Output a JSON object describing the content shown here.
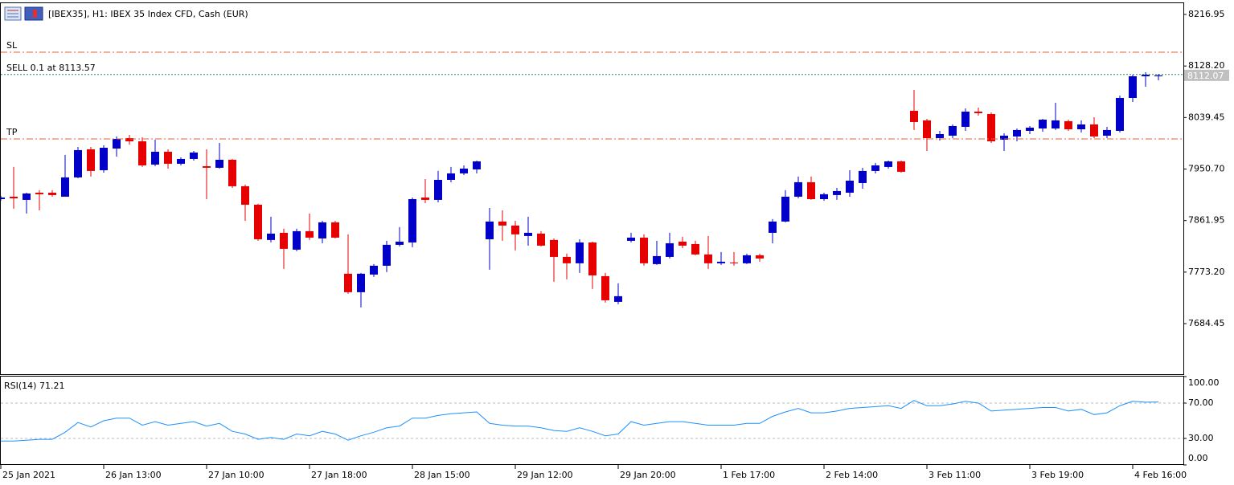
{
  "chart_data": [
    {
      "type": "candlestick",
      "title": "[IBEX35], H1:  IBEX 35 Index CFD, Cash (EUR)",
      "categories": [
        "25 Jan 2021",
        null,
        null,
        null,
        null,
        null,
        null,
        null,
        "26 Jan 13:00",
        null,
        null,
        null,
        null,
        null,
        null,
        null,
        "27 Jan 10:00",
        null,
        null,
        null,
        null,
        null,
        null,
        null,
        "27 Jan 18:00",
        null,
        null,
        null,
        null,
        null,
        null,
        null,
        "28 Jan 15:00",
        null,
        null,
        null,
        null,
        null,
        null,
        null,
        "29 Jan 12:00",
        null,
        null,
        null,
        null,
        null,
        null,
        null,
        "29 Jan 20:00",
        null,
        null,
        null,
        null,
        null,
        null,
        null,
        "1 Feb 17:00",
        null,
        null,
        null,
        null,
        null,
        null,
        null,
        "2 Feb 14:00",
        null,
        null,
        null,
        null,
        null,
        null,
        null,
        "3 Feb 11:00",
        null,
        null,
        null,
        null,
        null,
        null,
        null,
        "3 Feb 19:00",
        null,
        null,
        null,
        null,
        null,
        null,
        null,
        "4 Feb 16:00",
        null,
        null
      ],
      "open": [
        7898.9,
        7903.1,
        7897.6,
        7910.0,
        7910.0,
        7903.1,
        7936.3,
        7984.7,
        7948.7,
        7986.0,
        8004.0,
        7998.5,
        7958.4,
        7980.5,
        7959.8,
        7968.1,
        7955.6,
        7952.9,
        7966.7,
        7921.1,
        7889.3,
        7828.5,
        7840.9,
        7811.9,
        7843.7,
        7831.2,
        7858.9,
        7770.4,
        7738.6,
        7769.0,
        7784.2,
        7820.2,
        7824.3,
        7901.7,
        7897.6,
        7932.1,
        7943.2,
        7950.1,
        7829.8,
        7860.3,
        7853.4,
        7835.4,
        7839.5,
        7828.5,
        7799.4,
        7788.4,
        7824.3,
        7766.2,
        7722.0,
        7827.1,
        7832.6,
        7787.0,
        7799.4,
        7825.7,
        7821.5,
        7803.6,
        7788.4,
        7789.7,
        7788.4,
        7802.2,
        7840.9,
        7860.3,
        7903.1,
        7928.0,
        7898.9,
        7905.9,
        7910.0,
        7926.6,
        7947.4,
        7954.3,
        7963.9,
        8051.0,
        8034.5,
        8004.0,
        8008.2,
        8023.4,
        8049.6,
        8045.5,
        8001.2,
        8006.8,
        8016.5,
        8020.6,
        8020.6,
        8033.1,
        8019.2,
        8027.5,
        8008.2,
        8016.5,
        8073.1,
        8110.5,
        8110.5
      ],
      "high": [
        7904.5,
        7954.3,
        7910.0,
        7914.2,
        7914.2,
        7975.0,
        7988.8,
        7988.8,
        7991.6,
        8006.8,
        8009.5,
        8005.4,
        8001.2,
        7984.7,
        7970.8,
        7981.9,
        7984.7,
        7995.7,
        7968.1,
        7923.9,
        7890.7,
        7868.6,
        7847.8,
        7847.8,
        7874.1,
        7861.6,
        7861.6,
        7838.2,
        7771.8,
        7787.0,
        7827.1,
        7850.6,
        7901.7,
        7933.5,
        7947.4,
        7954.3,
        7957.0,
        7965.3,
        7883.7,
        7879.6,
        7861.6,
        7868.6,
        7843.7,
        7831.2,
        7805.0,
        7829.8,
        7825.7,
        7771.8,
        7753.9,
        7840.9,
        7838.2,
        7827.1,
        7840.9,
        7834.0,
        7827.1,
        7835.4,
        7807.7,
        7807.7,
        7805.0,
        7805.0,
        7864.4,
        7914.2,
        7937.7,
        7937.7,
        7910.0,
        7918.3,
        7948.7,
        7952.9,
        7961.2,
        7965.3,
        7965.3,
        8087.0,
        8037.2,
        8016.5,
        8027.5,
        8055.2,
        8056.5,
        8048.3,
        8012.3,
        8020.6,
        8024.8,
        8037.2,
        8064.8,
        8035.8,
        8034.5,
        8040.0,
        8023.4,
        8077.3,
        8113.2,
        8117.4,
        8114.6
      ],
      "low": [
        7896.2,
        7882.4,
        7874.1,
        7879.6,
        7903.1,
        7903.1,
        7934.9,
        7937.7,
        7944.6,
        7972.2,
        7993.0,
        7954.3,
        7955.6,
        7951.5,
        7957.0,
        7965.3,
        7898.9,
        7951.5,
        7918.3,
        7861.6,
        7827.1,
        7824.3,
        7778.7,
        7809.1,
        7828.5,
        7822.9,
        7831.2,
        7735.8,
        7712.3,
        7764.9,
        7773.2,
        7817.4,
        7816.0,
        7892.0,
        7893.4,
        7928.0,
        7940.4,
        7943.2,
        7777.3,
        7827.1,
        7810.5,
        7818.8,
        7817.4,
        7756.6,
        7760.7,
        7771.8,
        7744.1,
        7720.6,
        7717.9,
        7824.3,
        7784.2,
        7785.6,
        7796.7,
        7814.6,
        7802.2,
        7778.7,
        7785.6,
        7784.2,
        7787.0,
        7791.1,
        7822.9,
        7858.9,
        7900.3,
        7897.6,
        7896.2,
        7897.6,
        7903.1,
        7916.9,
        7943.2,
        7951.5,
        7944.6,
        8017.9,
        7981.9,
        7999.9,
        8004.0,
        8016.5,
        8042.7,
        7995.7,
        7981.9,
        7998.5,
        8010.9,
        8015.1,
        8017.9,
        8016.5,
        8013.7,
        8004.0,
        8004.0,
        8013.7,
        8066.2,
        8092.5,
        8103.6
      ],
      "close": [
        7901.7,
        7900.3,
        7908.6,
        7907.3,
        7905.9,
        7936.3,
        7983.3,
        7947.4,
        7987.4,
        8002.6,
        7998.5,
        7957.0,
        7980.5,
        7959.8,
        7968.1,
        7979.2,
        7952.9,
        7966.7,
        7921.1,
        7889.3,
        7829.8,
        7839.5,
        7813.3,
        7843.7,
        7832.6,
        7858.9,
        7832.6,
        7738.6,
        7770.4,
        7784.2,
        7820.2,
        7825.7,
        7898.9,
        7897.6,
        7932.1,
        7943.2,
        7951.5,
        7963.9,
        7860.3,
        7853.4,
        7838.2,
        7840.9,
        7818.8,
        7799.4,
        7788.4,
        7824.3,
        7767.6,
        7724.7,
        7731.7,
        7832.6,
        7788.4,
        7800.8,
        7822.9,
        7818.8,
        7803.6,
        7788.4,
        7791.1,
        7788.4,
        7802.2,
        7796.7,
        7860.3,
        7903.1,
        7928.0,
        7898.9,
        7907.3,
        7912.8,
        7930.7,
        7947.4,
        7957.0,
        7963.9,
        7946.0,
        8031.7,
        8004.0,
        8010.9,
        8024.8,
        8049.6,
        8046.9,
        7998.5,
        8008.2,
        8017.9,
        8022.0,
        8035.8,
        8034.5,
        8019.2,
        8027.5,
        8006.8,
        8017.9,
        8073.1,
        8110.5,
        8113.2,
        8112.07
      ],
      "up_color": "#0000c8",
      "down_color": "#e60000",
      "ylim": [
        7597.4,
        8237.7
      ],
      "yticks": [
        8216.95,
        {
          "value": 8128.2,
          "label": "8128.20"
        },
        8039.45,
        {
          "value": 7950.7,
          "label": "7950.70"
        },
        7861.95,
        {
          "value": 7773.2,
          "label": "7773.20"
        },
        7684.45
      ],
      "levels": [
        {
          "label": "SL",
          "value": 8151.9,
          "color": "#e0603a"
        },
        {
          "label": "SELL 0.1 at 8113.57",
          "value": 8113.57,
          "color": "#2e8b57"
        },
        {
          "label": "TP",
          "value": 8002.6,
          "color": "#e0603a"
        }
      ]
    },
    {
      "type": "line",
      "title": "RSI(14) 71.21",
      "color": "#1e90ff",
      "values": [
        27,
        27,
        28,
        29,
        29,
        37,
        48,
        43,
        50,
        53,
        53,
        45,
        49,
        45,
        47,
        49,
        44,
        47,
        38,
        35,
        29,
        31,
        29,
        35,
        33,
        38,
        35,
        28,
        33,
        37,
        42,
        44,
        53,
        53,
        56,
        58,
        59,
        60,
        47,
        45,
        44,
        44,
        42,
        39,
        38,
        42,
        38,
        33,
        35,
        49,
        45,
        47,
        49,
        49,
        47,
        45,
        45,
        45,
        47,
        47,
        55,
        60,
        64,
        59,
        59,
        61,
        64,
        65,
        66,
        67,
        64,
        73,
        67,
        67,
        69,
        72,
        70,
        61,
        62,
        63,
        64,
        65,
        65,
        61,
        63,
        57,
        59,
        67,
        72,
        71,
        71.21
      ],
      "ylim": [
        0,
        100
      ],
      "yticks": [
        {
          "value": 100,
          "label": "100.00"
        },
        {
          "value": 70,
          "label": "70.00"
        },
        {
          "value": 30,
          "label": "30.00"
        },
        {
          "value": 0,
          "label": "0.00"
        }
      ],
      "levels": [
        70,
        30
      ]
    }
  ]
}
